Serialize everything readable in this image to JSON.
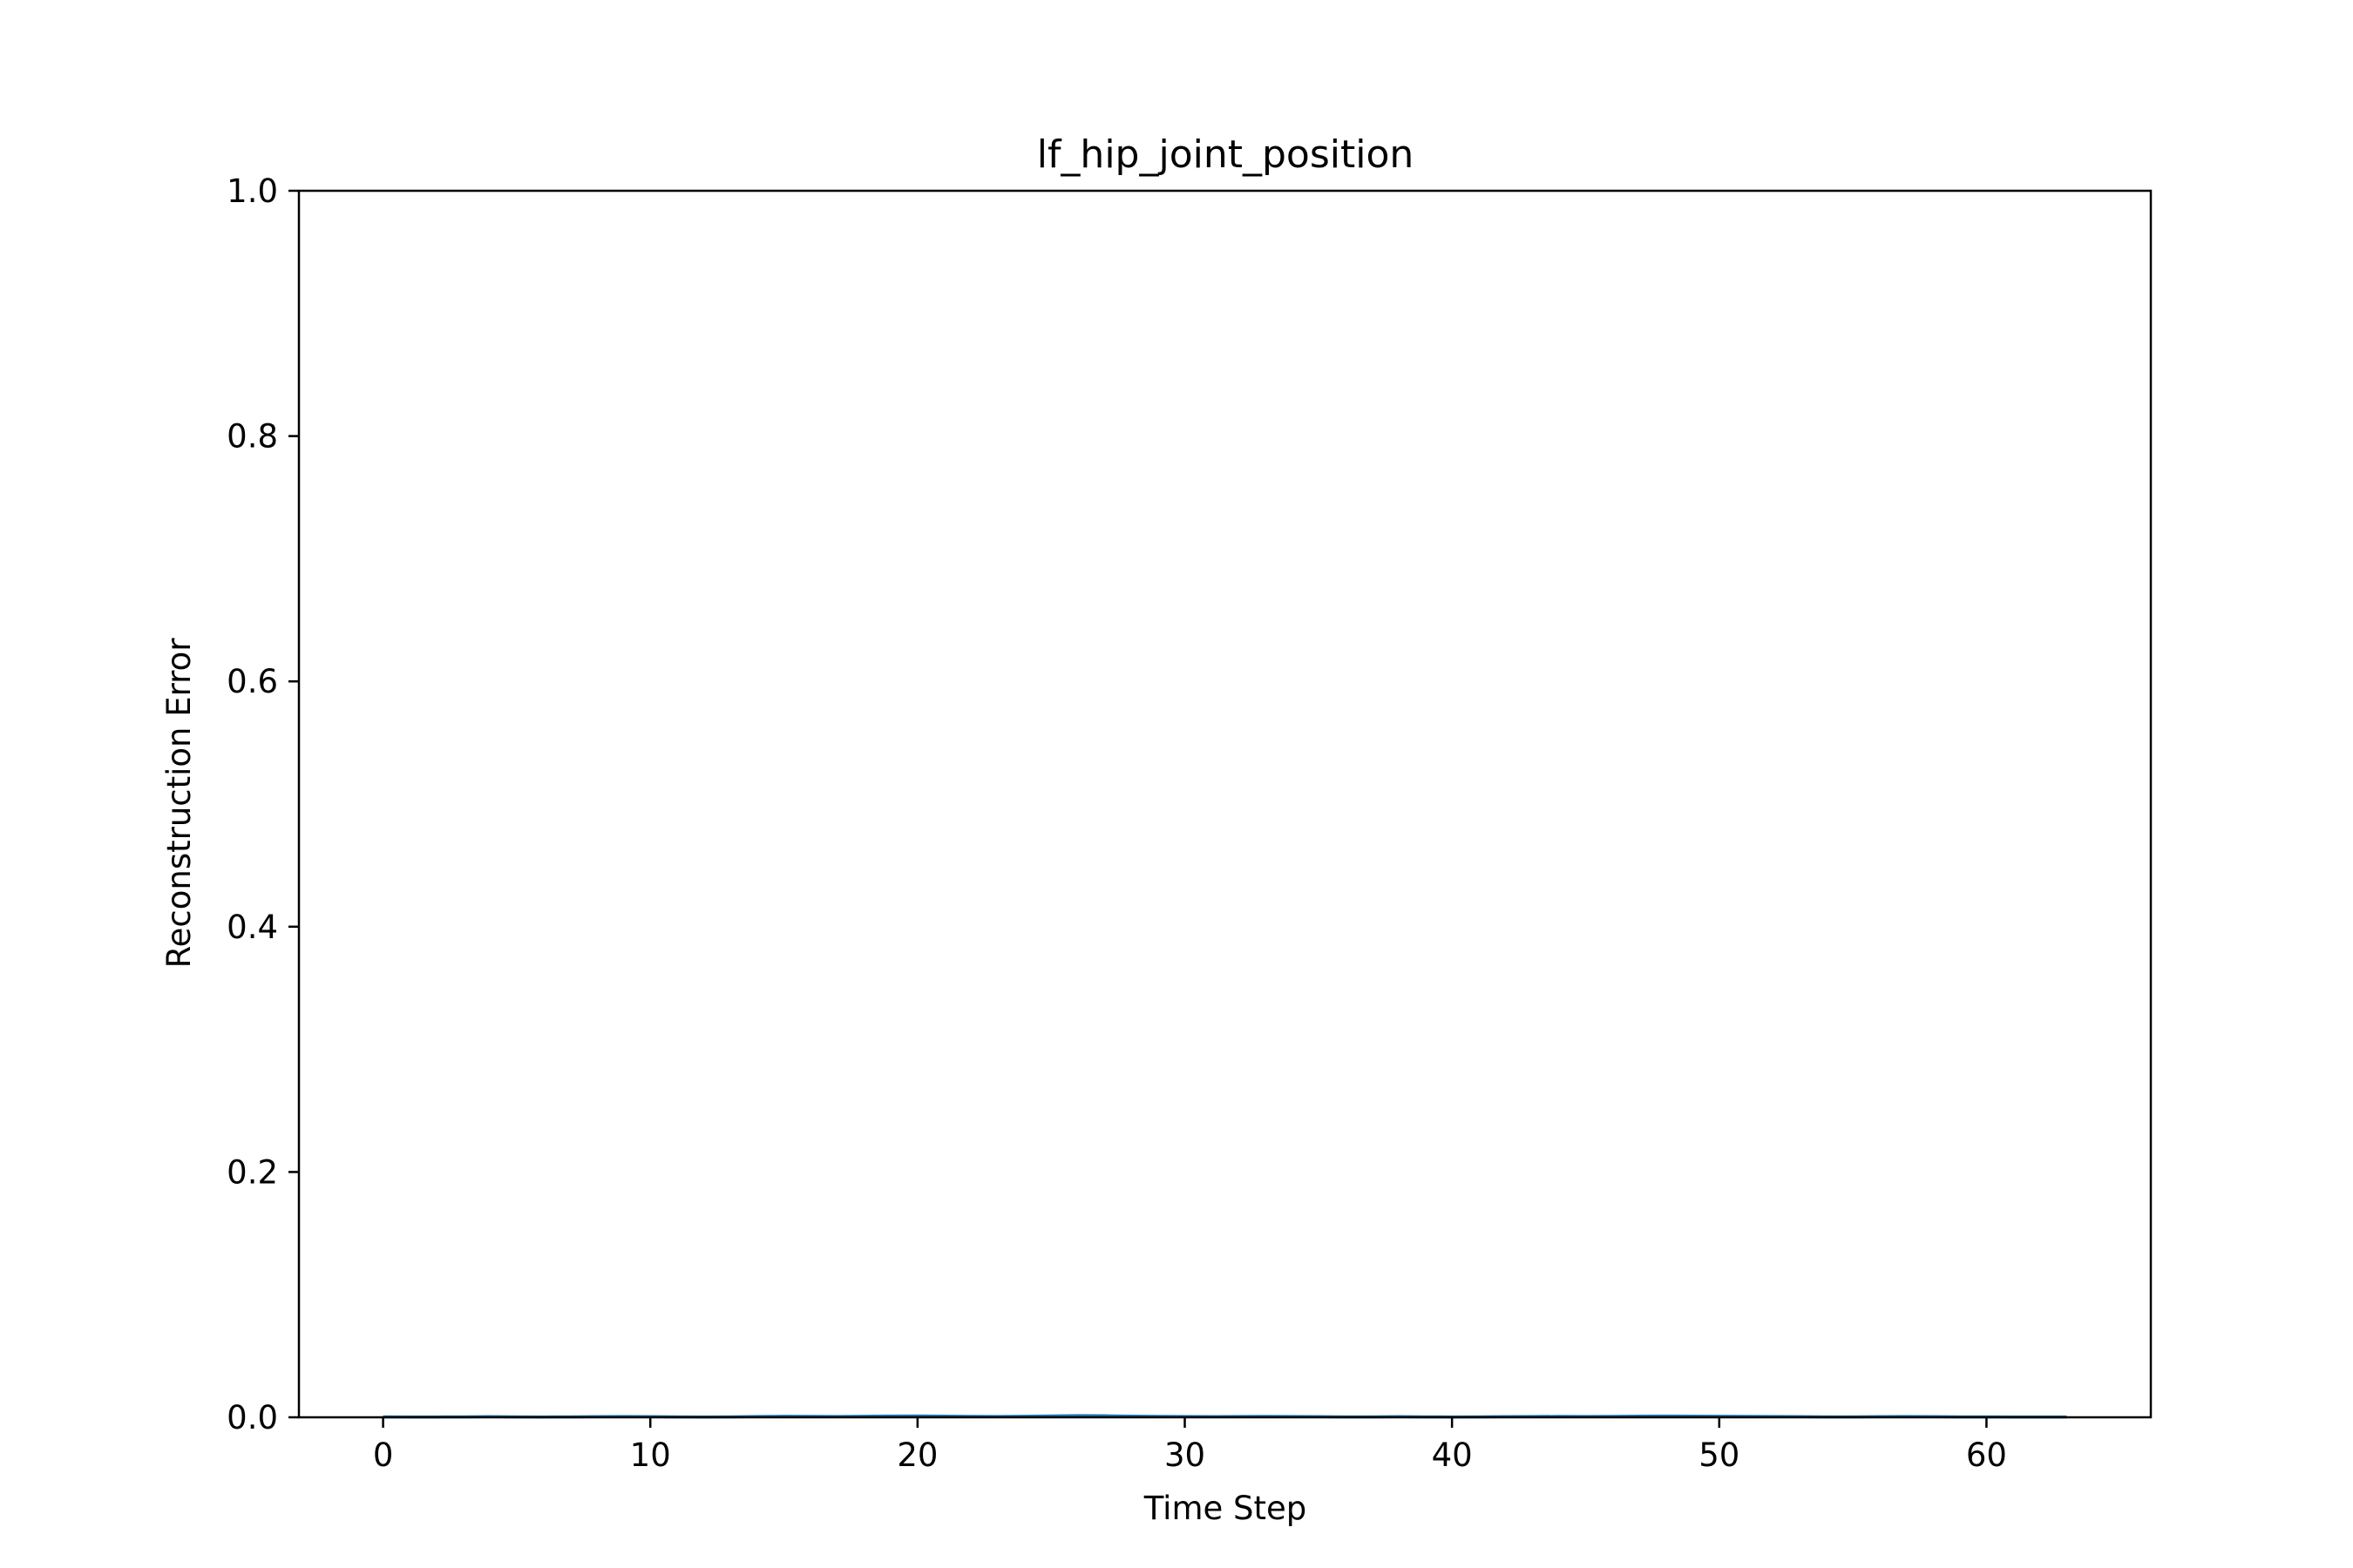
{
  "chart_data": {
    "type": "line",
    "title": "lf_hip_joint_position",
    "xlabel": "Time Step",
    "ylabel": "Reconstruction Error",
    "xlim": [
      -3.15,
      66.15
    ],
    "ylim": [
      0.0,
      1.0
    ],
    "x_ticks": [
      0,
      10,
      20,
      30,
      40,
      50,
      60
    ],
    "x_tick_labels": [
      "0",
      "10",
      "20",
      "30",
      "40",
      "50",
      "60"
    ],
    "y_ticks": [
      0.0,
      0.2,
      0.4,
      0.6,
      0.8,
      1.0
    ],
    "y_tick_labels": [
      "0.0",
      "0.2",
      "0.4",
      "0.6",
      "0.8",
      "1.0"
    ],
    "grid": false,
    "series_color": "#1f77b4",
    "x": [
      0,
      1,
      2,
      3,
      4,
      5,
      6,
      7,
      8,
      9,
      10,
      11,
      12,
      13,
      14,
      15,
      16,
      17,
      18,
      19,
      20,
      21,
      22,
      23,
      24,
      25,
      26,
      27,
      28,
      29,
      30,
      31,
      32,
      33,
      34,
      35,
      36,
      37,
      38,
      39,
      40,
      41,
      42,
      43,
      44,
      45,
      46,
      47,
      48,
      49,
      50,
      51,
      52,
      53,
      54,
      55,
      56,
      57,
      58,
      59,
      60,
      61,
      62,
      63
    ],
    "values": [
      0.0004,
      0.0003,
      0.0003,
      0.0004,
      0.0005,
      0.0004,
      0.0003,
      0.0004,
      0.0005,
      0.0006,
      0.0005,
      0.0004,
      0.0003,
      0.0004,
      0.0006,
      0.0008,
      0.0007,
      0.0006,
      0.0008,
      0.001,
      0.0011,
      0.0009,
      0.0007,
      0.0006,
      0.0008,
      0.0011,
      0.0013,
      0.0012,
      0.0009,
      0.0007,
      0.0006,
      0.0005,
      0.0006,
      0.0007,
      0.0006,
      0.0005,
      0.0004,
      0.0004,
      0.0005,
      0.0004,
      0.0003,
      0.0004,
      0.0005,
      0.0006,
      0.0007,
      0.0006,
      0.0007,
      0.0009,
      0.001,
      0.0009,
      0.0008,
      0.0007,
      0.0006,
      0.0005,
      0.0004,
      0.0004,
      0.0005,
      0.0006,
      0.0005,
      0.0004,
      0.0004,
      0.0003,
      0.0003,
      0.0003
    ]
  }
}
